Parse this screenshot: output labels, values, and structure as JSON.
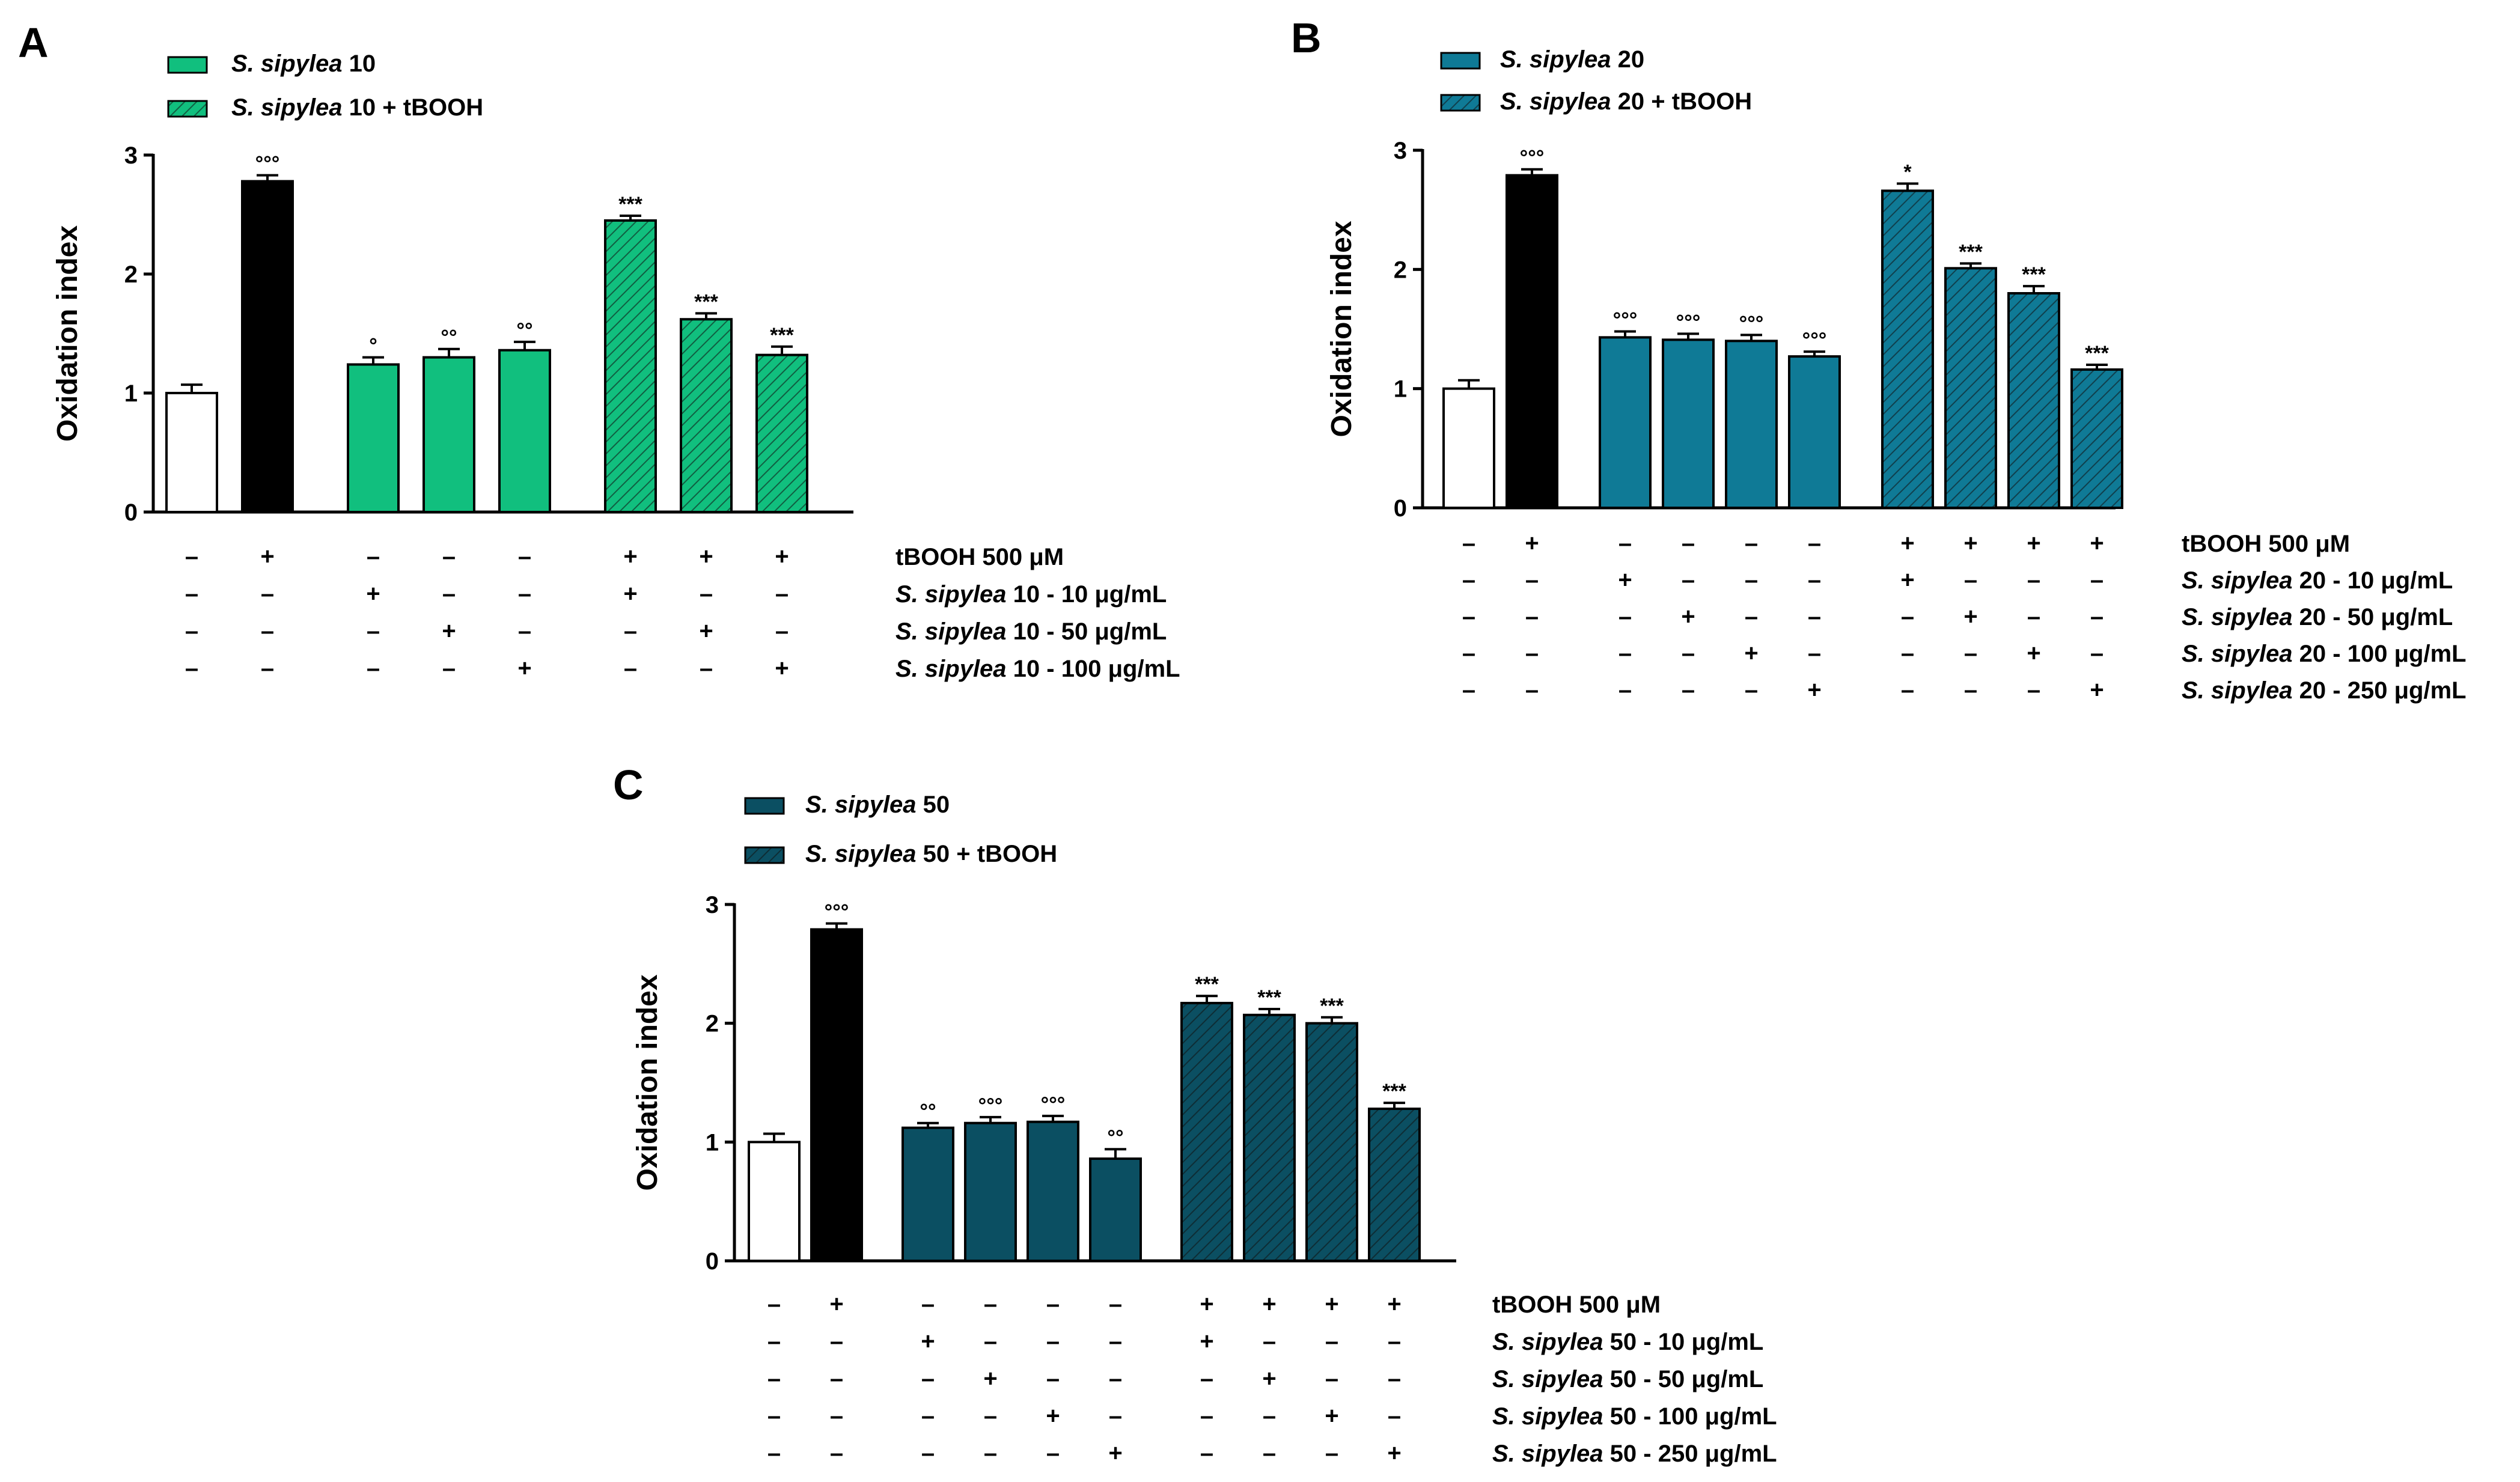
{
  "colors": {
    "control_fill": "#ffffff",
    "tbooh_fill": "#000000",
    "axis": "#000000",
    "panelA_fill": "#11bf7e",
    "panelB_fill": "#0f7a96",
    "panelC_fill": "#0b4f62"
  },
  "chart_data": [
    {
      "type": "bar",
      "panel_label": "A",
      "color_key": "panelA_fill",
      "ylabel": "Oxidation index",
      "ylim": [
        0,
        3
      ],
      "yticks": [
        "0",
        "1",
        "2",
        "3"
      ],
      "legend": [
        {
          "italic": "S. sipylea",
          "rest": " 10",
          "hatched": false
        },
        {
          "italic": "S. sipylea",
          "rest": " 10 + tBOOH",
          "hatched": true
        }
      ],
      "bars": [
        {
          "value": 1.0,
          "error": 0.07,
          "kind": "control",
          "sig": ""
        },
        {
          "value": 2.78,
          "error": 0.05,
          "kind": "tbooh",
          "sig": "°°°"
        },
        {
          "value": 1.24,
          "error": 0.06,
          "kind": "extract",
          "sig": "°"
        },
        {
          "value": 1.3,
          "error": 0.07,
          "kind": "extract",
          "sig": "°°"
        },
        {
          "value": 1.36,
          "error": 0.07,
          "kind": "extract",
          "sig": "°°"
        },
        {
          "value": 2.45,
          "error": 0.04,
          "kind": "hatched",
          "sig": "***"
        },
        {
          "value": 1.62,
          "error": 0.05,
          "kind": "hatched",
          "sig": "***"
        },
        {
          "value": 1.32,
          "error": 0.07,
          "kind": "hatched",
          "sig": "***"
        }
      ],
      "gaps_after": [
        1,
        4
      ],
      "rows": [
        {
          "label_italic": "",
          "label_rest": "tBOOH 500 μM",
          "signs": [
            "–",
            "+",
            "–",
            "–",
            "–",
            "+",
            "+",
            "+"
          ]
        },
        {
          "label_italic": "S. sipylea",
          "label_rest": " 10 - 10 μg/mL",
          "signs": [
            "–",
            "–",
            "+",
            "–",
            "–",
            "+",
            "–",
            "–"
          ]
        },
        {
          "label_italic": "S. sipylea",
          "label_rest": " 10 - 50 μg/mL",
          "signs": [
            "–",
            "–",
            "–",
            "+",
            "–",
            "–",
            "+",
            "–"
          ]
        },
        {
          "label_italic": "S. sipylea",
          "label_rest": " 10 - 100 μg/mL",
          "signs": [
            "–",
            "–",
            "–",
            "–",
            "+",
            "–",
            "–",
            "+"
          ]
        }
      ]
    },
    {
      "type": "bar",
      "panel_label": "B",
      "color_key": "panelB_fill",
      "ylabel": "Oxidation index",
      "ylim": [
        0,
        3
      ],
      "yticks": [
        "0",
        "1",
        "2",
        "3"
      ],
      "legend": [
        {
          "italic": "S. sipylea",
          "rest": " 20",
          "hatched": false
        },
        {
          "italic": "S. sipylea",
          "rest": " 20 + tBOOH",
          "hatched": true
        }
      ],
      "bars": [
        {
          "value": 1.0,
          "error": 0.07,
          "kind": "control",
          "sig": ""
        },
        {
          "value": 2.79,
          "error": 0.05,
          "kind": "tbooh",
          "sig": "°°°"
        },
        {
          "value": 1.43,
          "error": 0.05,
          "kind": "extract",
          "sig": "°°°"
        },
        {
          "value": 1.41,
          "error": 0.05,
          "kind": "extract",
          "sig": "°°°"
        },
        {
          "value": 1.4,
          "error": 0.05,
          "kind": "extract",
          "sig": "°°°"
        },
        {
          "value": 1.27,
          "error": 0.04,
          "kind": "extract",
          "sig": "°°°"
        },
        {
          "value": 2.66,
          "error": 0.06,
          "kind": "hatched",
          "sig": "*"
        },
        {
          "value": 2.01,
          "error": 0.04,
          "kind": "hatched",
          "sig": "***"
        },
        {
          "value": 1.8,
          "error": 0.06,
          "kind": "hatched",
          "sig": "***"
        },
        {
          "value": 1.16,
          "error": 0.04,
          "kind": "hatched",
          "sig": "***"
        }
      ],
      "gaps_after": [
        1,
        5
      ],
      "rows": [
        {
          "label_italic": "",
          "label_rest": "tBOOH 500 μM",
          "signs": [
            "–",
            "+",
            "–",
            "–",
            "–",
            "–",
            "+",
            "+",
            "+",
            "+"
          ]
        },
        {
          "label_italic": "S. sipylea",
          "label_rest": " 20 - 10 μg/mL",
          "signs": [
            "–",
            "–",
            "+",
            "–",
            "–",
            "–",
            "+",
            "–",
            "–",
            "–"
          ]
        },
        {
          "label_italic": "S. sipylea",
          "label_rest": " 20 - 50 μg/mL",
          "signs": [
            "–",
            "–",
            "–",
            "+",
            "–",
            "–",
            "–",
            "+",
            "–",
            "–"
          ]
        },
        {
          "label_italic": "S. sipylea",
          "label_rest": " 20 - 100 μg/mL",
          "signs": [
            "–",
            "–",
            "–",
            "–",
            "+",
            "–",
            "–",
            "–",
            "+",
            "–"
          ]
        },
        {
          "label_italic": "S. sipylea",
          "label_rest": " 20 - 250 μg/mL",
          "signs": [
            "–",
            "–",
            "–",
            "–",
            "–",
            "+",
            "–",
            "–",
            "–",
            "+"
          ]
        }
      ]
    },
    {
      "type": "bar",
      "panel_label": "C",
      "color_key": "panelC_fill",
      "ylabel": "Oxidation index",
      "ylim": [
        0,
        3
      ],
      "yticks": [
        "0",
        "1",
        "2",
        "3"
      ],
      "legend": [
        {
          "italic": "S. sipylea",
          "rest": " 50",
          "hatched": false
        },
        {
          "italic": "S. sipylea",
          "rest": " 50 + tBOOH",
          "hatched": true
        }
      ],
      "bars": [
        {
          "value": 1.0,
          "error": 0.07,
          "kind": "control",
          "sig": ""
        },
        {
          "value": 2.79,
          "error": 0.05,
          "kind": "tbooh",
          "sig": "°°°"
        },
        {
          "value": 1.12,
          "error": 0.04,
          "kind": "extract",
          "sig": "°°"
        },
        {
          "value": 1.16,
          "error": 0.05,
          "kind": "extract",
          "sig": "°°°"
        },
        {
          "value": 1.17,
          "error": 0.05,
          "kind": "extract",
          "sig": "°°°"
        },
        {
          "value": 0.86,
          "error": 0.08,
          "kind": "extract",
          "sig": "°°"
        },
        {
          "value": 2.17,
          "error": 0.06,
          "kind": "hatched",
          "sig": "***"
        },
        {
          "value": 2.07,
          "error": 0.05,
          "kind": "hatched",
          "sig": "***"
        },
        {
          "value": 2.0,
          "error": 0.05,
          "kind": "hatched",
          "sig": "***"
        },
        {
          "value": 1.28,
          "error": 0.05,
          "kind": "hatched",
          "sig": "***"
        }
      ],
      "gaps_after": [
        1,
        5
      ],
      "rows": [
        {
          "label_italic": "",
          "label_rest": "tBOOH 500 μM",
          "signs": [
            "–",
            "+",
            "–",
            "–",
            "–",
            "–",
            "+",
            "+",
            "+",
            "+"
          ]
        },
        {
          "label_italic": "S. sipylea",
          "label_rest": " 50 - 10 μg/mL",
          "signs": [
            "–",
            "–",
            "+",
            "–",
            "–",
            "–",
            "+",
            "–",
            "–",
            "–"
          ]
        },
        {
          "label_italic": "S. sipylea",
          "label_rest": " 50 - 50 μg/mL",
          "signs": [
            "–",
            "–",
            "–",
            "+",
            "–",
            "–",
            "–",
            "+",
            "–",
            "–"
          ]
        },
        {
          "label_italic": "S. sipylea",
          "label_rest": " 50 - 100 μg/mL",
          "signs": [
            "–",
            "–",
            "–",
            "–",
            "+",
            "–",
            "–",
            "–",
            "+",
            "–"
          ]
        },
        {
          "label_italic": "S. sipylea",
          "label_rest": " 50 - 250 μg/mL",
          "signs": [
            "–",
            "–",
            "–",
            "–",
            "–",
            "+",
            "–",
            "–",
            "–",
            "+"
          ]
        }
      ]
    }
  ]
}
